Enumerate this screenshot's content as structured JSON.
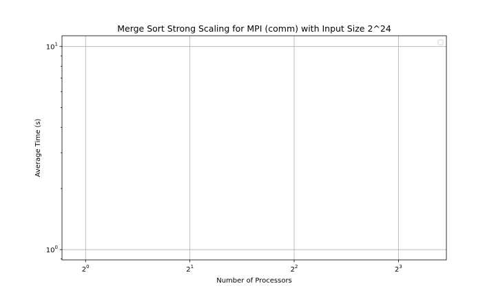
{
  "chart_data": {
    "type": "line",
    "title": "Merge Sort Strong Scaling for MPI (comm) with Input Size 2^24",
    "xlabel": "Number of Processors",
    "ylabel": "Average Time (s)",
    "x_scale": "log2",
    "y_scale": "log10",
    "x_ticks": [
      {
        "base": "2",
        "exp": "0",
        "value": 1
      },
      {
        "base": "2",
        "exp": "1",
        "value": 2
      },
      {
        "base": "2",
        "exp": "2",
        "value": 4
      },
      {
        "base": "2",
        "exp": "3",
        "value": 8
      }
    ],
    "y_ticks": [
      {
        "base": "10",
        "exp": "0",
        "value": 1
      },
      {
        "base": "10",
        "exp": "1",
        "value": 10
      }
    ],
    "xlim": [
      0.855,
      11.0
    ],
    "ylim": [
      0.89,
      11.3
    ],
    "grid": true,
    "legend": "top-right",
    "series": []
  }
}
